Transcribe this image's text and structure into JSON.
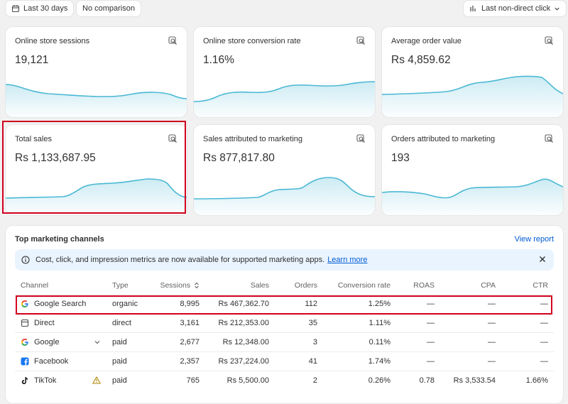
{
  "topbar": {
    "date_range": "Last 30 days",
    "comparison": "No comparison",
    "attribution": "Last non-direct click"
  },
  "metrics": [
    {
      "title": "Online store sessions",
      "value": "19,121"
    },
    {
      "title": "Online store conversion rate",
      "value": "1.16%"
    },
    {
      "title": "Average order value",
      "value": "Rs 4,859.62"
    },
    {
      "title": "Total sales",
      "value": "Rs 1,133,687.95"
    },
    {
      "title": "Sales attributed to marketing",
      "value": "Rs 877,817.80"
    },
    {
      "title": "Orders attributed to marketing",
      "value": "193"
    }
  ],
  "channels": {
    "title": "Top marketing channels",
    "view_report": "View report",
    "banner": {
      "message": "Cost, click, and impression metrics are now available for supported marketing apps.",
      "link": "Learn more"
    },
    "columns": [
      "Channel",
      "Type",
      "Sessions",
      "Sales",
      "Orders",
      "Conversion rate",
      "ROAS",
      "CPA",
      "CTR"
    ],
    "rows": [
      {
        "channel": "Google Search",
        "icon": "google-icon",
        "type": "organic",
        "sessions": "8,995",
        "sales": "Rs 467,362.70",
        "orders": "112",
        "conversion": "1.25%",
        "roas": "—",
        "cpa": "—",
        "ctr": "—"
      },
      {
        "channel": "Direct",
        "icon": "direct-icon",
        "type": "direct",
        "sessions": "3,161",
        "sales": "Rs 212,353.00",
        "orders": "35",
        "conversion": "1.11%",
        "roas": "—",
        "cpa": "—",
        "ctr": "—"
      },
      {
        "channel": "Google",
        "icon": "google-icon",
        "type": "paid",
        "sessions": "2,677",
        "sales": "Rs 12,348.00",
        "orders": "3",
        "conversion": "0.11%",
        "roas": "—",
        "cpa": "—",
        "ctr": "—"
      },
      {
        "channel": "Facebook",
        "icon": "facebook-icon",
        "type": "paid",
        "sessions": "2,357",
        "sales": "Rs 237,224.00",
        "orders": "41",
        "conversion": "1.74%",
        "roas": "—",
        "cpa": "—",
        "ctr": "—"
      },
      {
        "channel": "TikTok",
        "icon": "tiktok-icon",
        "type": "paid",
        "sessions": "765",
        "sales": "Rs 5,500.00",
        "orders": "2",
        "conversion": "0.26%",
        "roas": "0.78",
        "cpa": "Rs 3,533.54",
        "ctr": "1.66%"
      }
    ]
  },
  "colors": {
    "accent_link": "#005bd3",
    "sparkline": "#4ab8d4",
    "highlight": "#d1001f",
    "banner_bg": "#eaf4ff"
  }
}
